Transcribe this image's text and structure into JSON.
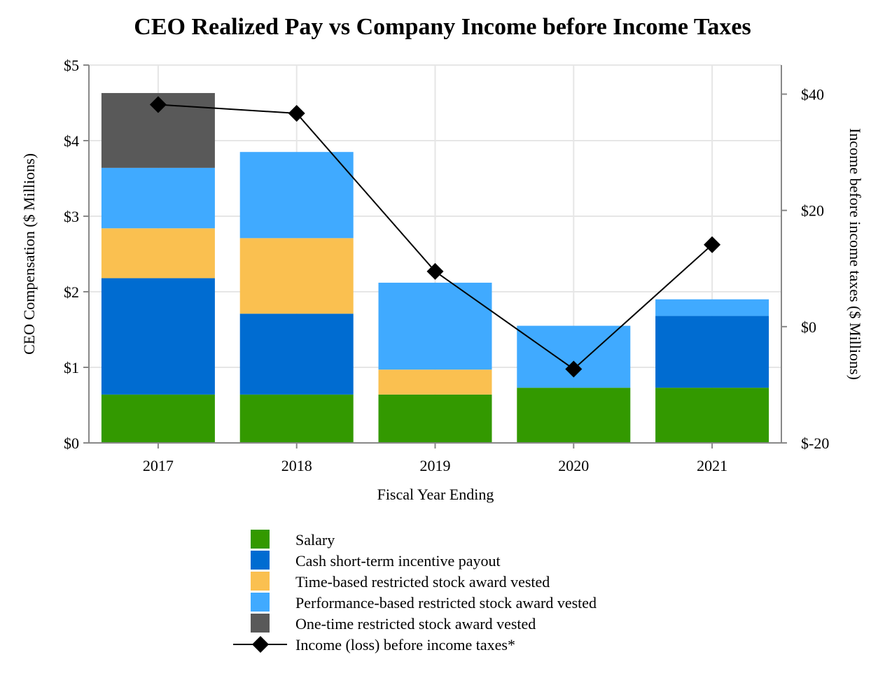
{
  "chart_data": {
    "type": "bar",
    "stacked": true,
    "title": "CEO Realized Pay vs Company Income before Income Taxes",
    "xlabel": "Fiscal Year Ending",
    "ylabel": "CEO Compensation ($ Millions)",
    "y2label": "Income before income taxes ($ Millions)",
    "ylim": [
      0,
      5
    ],
    "y2lim": [
      -20,
      45
    ],
    "yticks": [
      "$0",
      "$1",
      "$2",
      "$3",
      "$4",
      "$5"
    ],
    "y2ticks": [
      "$-20",
      "$0",
      "$20",
      "$40"
    ],
    "grid": true,
    "legend_position": "bottom",
    "categories": [
      "2017",
      "2018",
      "2019",
      "2020",
      "2021"
    ],
    "series": [
      {
        "name": "Salary",
        "color": "#339900",
        "values": [
          0.64,
          0.64,
          0.64,
          0.73,
          0.73
        ]
      },
      {
        "name": "Cash short-term incentive payout",
        "color": "#006cd1",
        "values": [
          1.54,
          1.07,
          0,
          0,
          0.95
        ]
      },
      {
        "name": "Time-based restricted stock award vested",
        "color": "#fac050",
        "values": [
          0.66,
          1.0,
          0.33,
          0,
          0
        ]
      },
      {
        "name": "Performance-based restricted stock award vested",
        "color": "#40aaff",
        "values": [
          0.8,
          1.14,
          1.15,
          0.82,
          0.22
        ]
      },
      {
        "name": "One-time restricted stock award vested",
        "color": "#595959",
        "values": [
          0.99,
          0,
          0,
          0,
          0
        ]
      }
    ],
    "line_series": {
      "name": "Income (loss) before income taxes*",
      "color": "#000000",
      "axis": "right",
      "marker": "diamond",
      "values": [
        38.2,
        36.7,
        9.5,
        -7.3,
        14.1
      ]
    }
  }
}
